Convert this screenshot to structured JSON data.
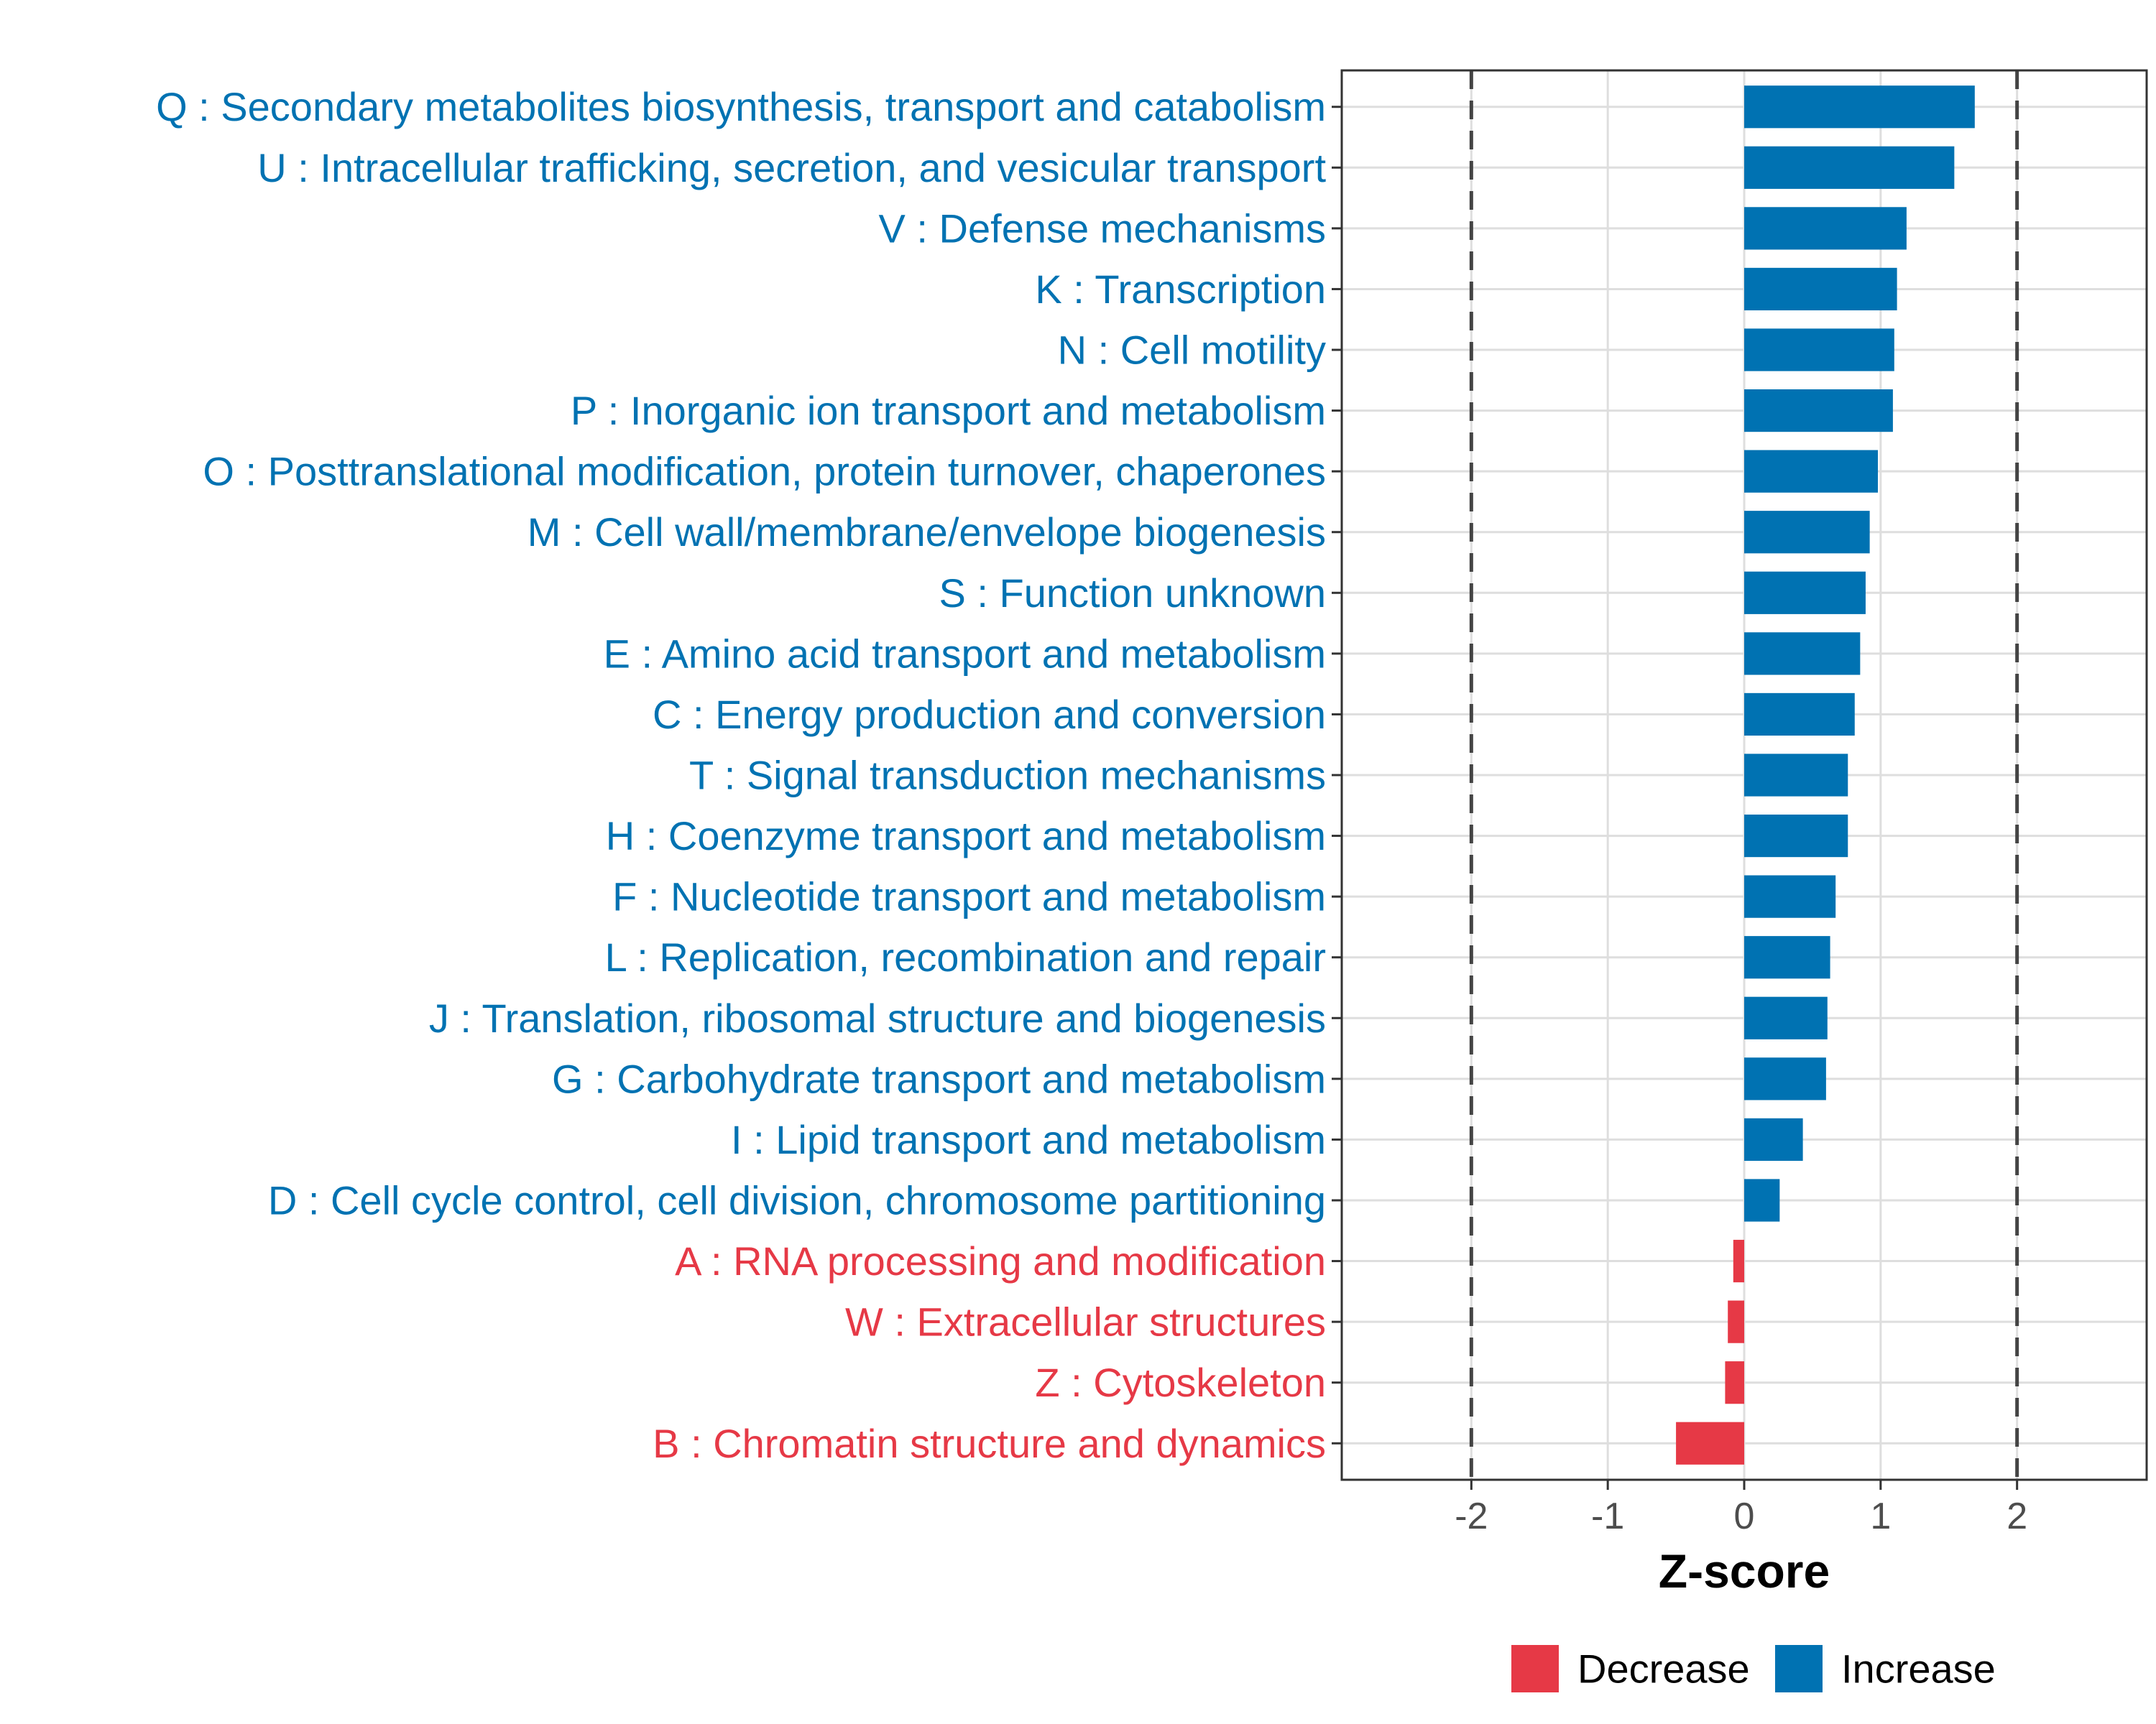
{
  "chart_data": {
    "type": "bar",
    "orientation": "horizontal",
    "title": "",
    "xlabel": "Z-score",
    "ylabel": "",
    "xlim": [
      -2.95,
      2.95
    ],
    "xticks": [
      -2,
      -1,
      0,
      1,
      2
    ],
    "xtick_labels": [
      "-2",
      "-1",
      "0",
      "1",
      "2"
    ],
    "reference_lines": [
      -2,
      2
    ],
    "grid": true,
    "legend_position": "bottom",
    "colors": {
      "Increase": "#0072B2",
      "Decrease": "#E63946"
    },
    "legend": [
      {
        "key": "Decrease",
        "label": "Decrease"
      },
      {
        "key": "Increase",
        "label": "Increase"
      }
    ],
    "categories": [
      "Q : Secondary metabolites biosynthesis, transport and catabolism",
      "U : Intracellular trafficking, secretion, and vesicular transport",
      "V : Defense mechanisms",
      "K : Transcription",
      "N : Cell motility",
      "P : Inorganic ion transport and metabolism",
      "O : Posttranslational modification, protein turnover, chaperones",
      "M : Cell wall/membrane/envelope biogenesis",
      "S : Function unknown",
      "E : Amino acid transport and metabolism",
      "C : Energy production and conversion",
      "T : Signal transduction mechanisms",
      "H : Coenzyme transport and metabolism",
      "F : Nucleotide transport and metabolism",
      "L : Replication, recombination and repair",
      "J : Translation, ribosomal structure and biogenesis",
      "G : Carbohydrate transport and metabolism",
      "I : Lipid transport and metabolism",
      "D : Cell cycle control, cell division, chromosome partitioning",
      "A : RNA processing and modification",
      "W : Extracellular structures",
      "Z : Cytoskeleton",
      "B : Chromatin structure and dynamics"
    ],
    "values": [
      1.69,
      1.54,
      1.19,
      1.12,
      1.1,
      1.09,
      0.98,
      0.92,
      0.89,
      0.85,
      0.81,
      0.76,
      0.76,
      0.67,
      0.63,
      0.61,
      0.6,
      0.43,
      0.26,
      -0.08,
      -0.12,
      -0.14,
      -0.5
    ],
    "direction": [
      "Increase",
      "Increase",
      "Increase",
      "Increase",
      "Increase",
      "Increase",
      "Increase",
      "Increase",
      "Increase",
      "Increase",
      "Increase",
      "Increase",
      "Increase",
      "Increase",
      "Increase",
      "Increase",
      "Increase",
      "Increase",
      "Increase",
      "Decrease",
      "Decrease",
      "Decrease",
      "Decrease"
    ]
  }
}
